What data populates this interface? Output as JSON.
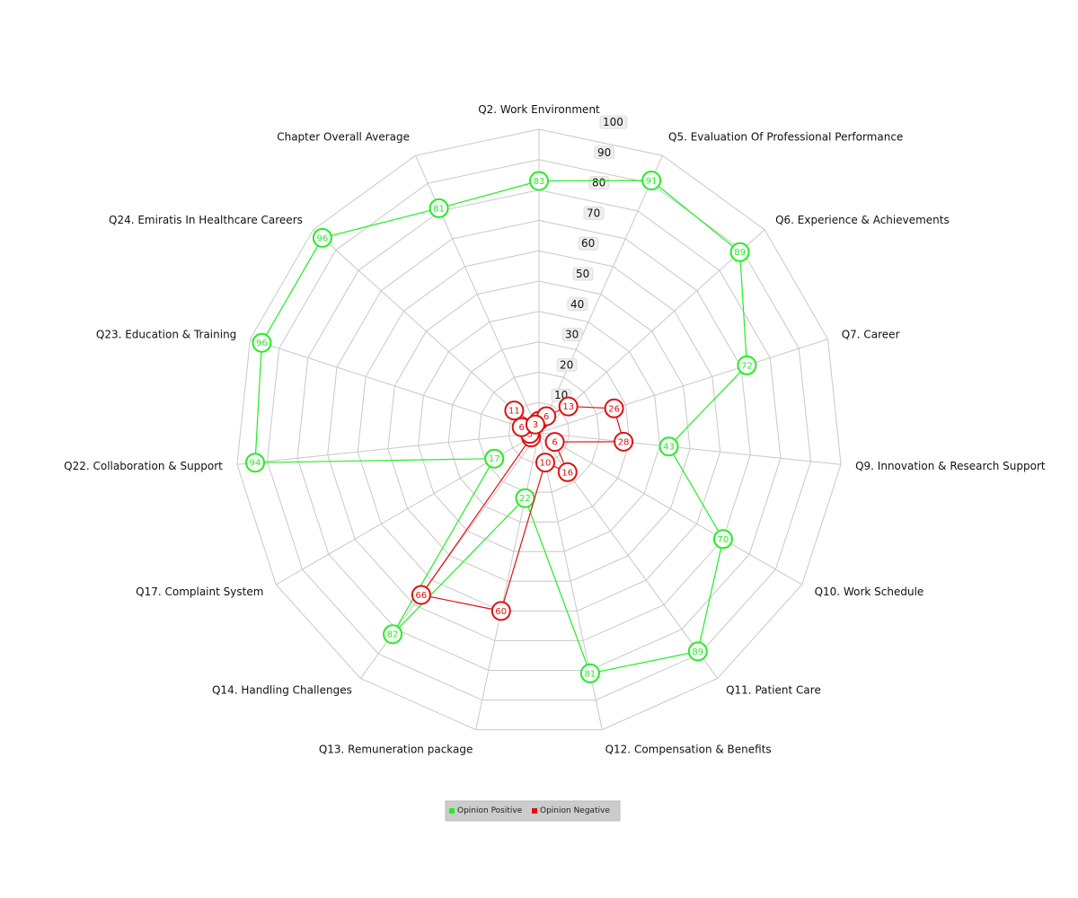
{
  "chart_data": {
    "type": "radar",
    "axes": [
      "Q2. Work Environment",
      "Q5. Evaluation Of Professional Performance",
      "Q6. Experience & Achievements",
      "Q7. Career",
      "Q9. Innovation & Research Support",
      "Q10. Work Schedule",
      "Q11. Patient Care",
      "Q12. Compensation & Benefits",
      "Q13. Remuneration package",
      "Q14. Handling Challenges",
      "Q17. Complaint System",
      "Q22. Collaboration & Support",
      "Q23. Education & Training",
      "Q24. Emiratis In Healthcare Careers",
      "Chapter Overall Average"
    ],
    "range": [
      0,
      100
    ],
    "ticks": [
      10,
      20,
      30,
      40,
      50,
      60,
      70,
      80,
      90,
      100
    ],
    "series": [
      {
        "name": "Opinion Positive",
        "color": "#22ee22",
        "values": [
          83,
          91,
          89,
          72,
          43,
          70,
          89,
          81,
          22,
          82,
          17,
          94,
          96,
          96,
          81
        ]
      },
      {
        "name": "Opinion Negative",
        "color": "#dd1111",
        "values": [
          4,
          6,
          13,
          26,
          28,
          6,
          16,
          10,
          60,
          66,
          3,
          3,
          6,
          11,
          3
        ]
      }
    ],
    "legend_position": "bottom-center"
  }
}
